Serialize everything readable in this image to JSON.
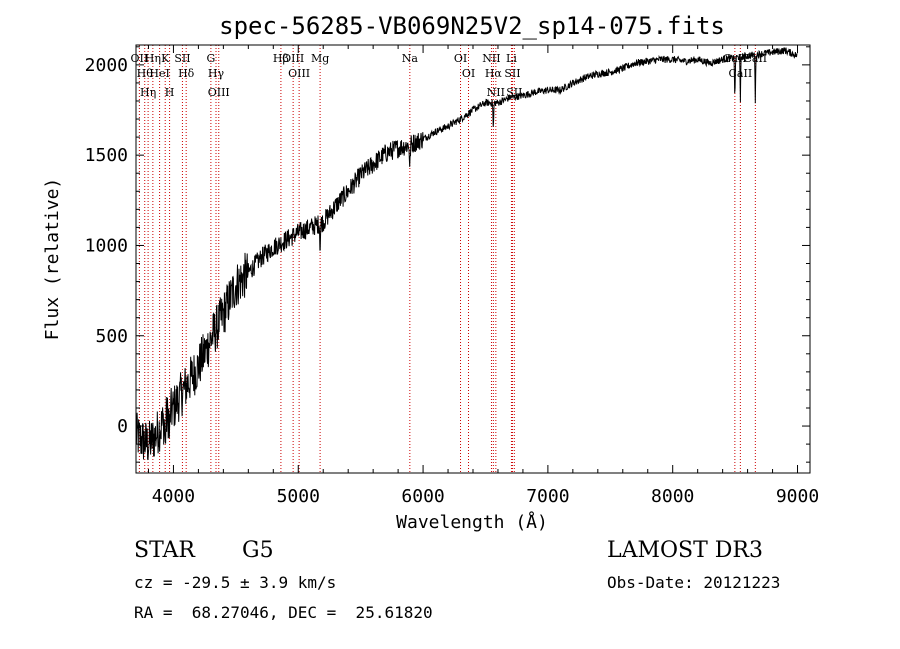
{
  "chart_data": {
    "type": "line",
    "title": "spec-56285-VB069N25V2_sp14-075.fits",
    "xlabel": "Wavelength (Å)",
    "ylabel": "Flux (relative)",
    "xlim": [
      3700,
      9100
    ],
    "ylim": [
      -260,
      2110
    ],
    "x_ticks": [
      4000,
      5000,
      6000,
      7000,
      8000,
      9000
    ],
    "y_ticks": [
      0,
      500,
      1000,
      1500,
      2000
    ],
    "spectrum_anchor_x": [
      3700,
      3750,
      3800,
      3850,
      3900,
      4000,
      4100,
      4200,
      4300,
      4400,
      4500,
      4600,
      4700,
      4800,
      4900,
      5000,
      5100,
      5200,
      5300,
      5400,
      5500,
      5600,
      5700,
      5800,
      5900,
      6000,
      6100,
      6200,
      6300,
      6400,
      6500,
      6600,
      6700,
      6800,
      6900,
      7000,
      7100,
      7200,
      7300,
      7400,
      7500,
      7600,
      7700,
      7800,
      7900,
      8000,
      8100,
      8200,
      8300,
      8400,
      8500,
      8600,
      8700,
      8800,
      8900,
      9000
    ],
    "spectrum_anchor_y": [
      -50,
      -80,
      -100,
      -60,
      0,
      100,
      220,
      330,
      480,
      620,
      780,
      850,
      930,
      990,
      1030,
      1070,
      1100,
      1130,
      1220,
      1300,
      1390,
      1450,
      1510,
      1540,
      1560,
      1590,
      1630,
      1660,
      1700,
      1750,
      1790,
      1790,
      1820,
      1830,
      1850,
      1860,
      1860,
      1900,
      1930,
      1950,
      1960,
      1980,
      2010,
      2020,
      2030,
      2030,
      2020,
      2030,
      2010,
      2030,
      2040,
      2050,
      2060,
      2070,
      2080,
      2050
    ],
    "line_color": "#000000",
    "marker_color": "#cc0000",
    "spectral_lines": [
      {
        "wavelength": 3727,
        "label": "OII"
      },
      {
        "wavelength": 3770,
        "label": "Hθ"
      },
      {
        "wavelength": 3797,
        "label": "Hη"
      },
      {
        "wavelength": 3835,
        "label": "Hη"
      },
      {
        "wavelength": 3889,
        "label": "HeI"
      },
      {
        "wavelength": 3934,
        "label": "K"
      },
      {
        "wavelength": 3969,
        "label": "H"
      },
      {
        "wavelength": 4072,
        "label": "SII"
      },
      {
        "wavelength": 4102,
        "label": "Hδ"
      },
      {
        "wavelength": 4300,
        "label": "G"
      },
      {
        "wavelength": 4341,
        "label": "Hγ"
      },
      {
        "wavelength": 4363,
        "label": "OIII"
      },
      {
        "wavelength": 4861,
        "label": "Hβ"
      },
      {
        "wavelength": 4959,
        "label": "OIII"
      },
      {
        "wavelength": 5007,
        "label": "OIII"
      },
      {
        "wavelength": 5175,
        "label": "Mg"
      },
      {
        "wavelength": 5894,
        "label": "Na"
      },
      {
        "wavelength": 6300,
        "label": "OI"
      },
      {
        "wavelength": 6364,
        "label": "OI"
      },
      {
        "wavelength": 6548,
        "label": "NII"
      },
      {
        "wavelength": 6563,
        "label": "Hα"
      },
      {
        "wavelength": 6583,
        "label": "NII"
      },
      {
        "wavelength": 6708,
        "label": "Li"
      },
      {
        "wavelength": 6716,
        "label": "SII"
      },
      {
        "wavelength": 6731,
        "label": "SII"
      },
      {
        "wavelength": 8498,
        "label": "CaII"
      },
      {
        "wavelength": 8542,
        "label": "CaII"
      },
      {
        "wavelength": 8662,
        "label": "CaII"
      }
    ]
  },
  "info": {
    "object_class": "STAR",
    "subclass": "G5",
    "survey": "LAMOST DR3",
    "cz_line": "cz = -29.5 ± 3.9 km/s",
    "obs_date_line": "Obs-Date: 20121223",
    "radec_line": "RA =  68.27046, DEC =  25.61820"
  }
}
